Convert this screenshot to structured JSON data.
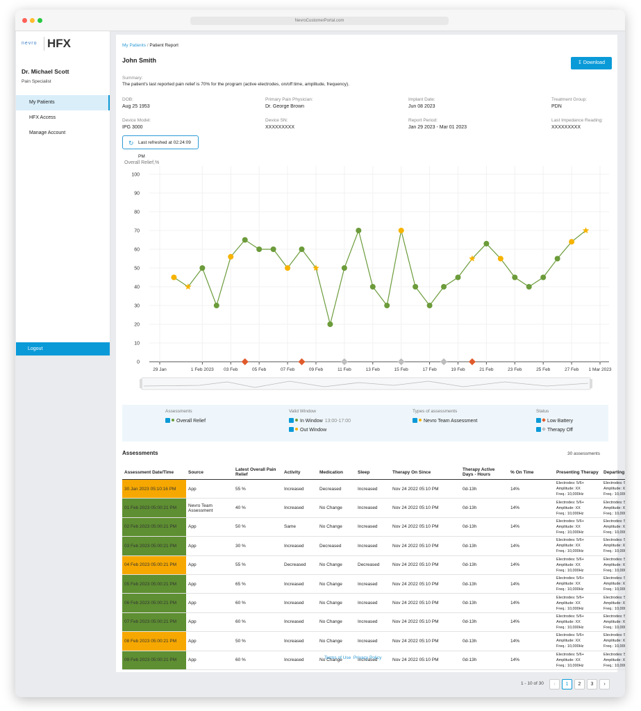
{
  "browser": {
    "url": "NevroCustomerPortal.com"
  },
  "sidebar": {
    "logo": {
      "brand": "nevro",
      "product": "HFX"
    },
    "user": {
      "name": "Dr. Michael Scott",
      "role": "Pain Specialist"
    },
    "nav": [
      "My Patients",
      "HFX Access",
      "Manage Account"
    ],
    "logout": "Logout"
  },
  "breadcrumb": [
    "My Patients",
    "Patient Report"
  ],
  "patient": {
    "name": "John Smith",
    "download": "Download",
    "summary_label": "Summary:",
    "summary": "The patient's last reported pain relief is 70% for the program (active electrodes, on/off time, amplitude, frequency).",
    "fields": [
      {
        "label": "DOB:",
        "value": "Aug 25 1953"
      },
      {
        "label": "Primary Pain Physician:",
        "value": "Dr. George Brown"
      },
      {
        "label": "Implant Date:",
        "value": "Jun 08 2023"
      },
      {
        "label": "Treatment Group:",
        "value": "PDN"
      },
      {
        "label": "Device Model:",
        "value": "IPG 3000"
      },
      {
        "label": "Device SN:",
        "value": "XXXXXXXXX"
      },
      {
        "label": "Report Period:",
        "value": "Jan 29 2023 - Mar 01 2023"
      },
      {
        "label": "Last Impedance Reading:",
        "value": "XXXXXXXXX"
      }
    ],
    "refreshed": "Last refreshed at 02:24:09 PM"
  },
  "chart_data": {
    "type": "line",
    "y_label": "Overall Relief,%",
    "x": [
      "2023-01-30",
      "2023-01-31",
      "2023-02-01",
      "2023-02-02",
      "2023-02-03",
      "2023-02-04",
      "2023-02-05",
      "2023-02-06",
      "2023-02-07",
      "2023-02-08",
      "2023-02-09",
      "2023-02-10",
      "2023-02-11",
      "2023-02-12",
      "2023-02-13",
      "2023-02-14",
      "2023-02-15",
      "2023-02-16",
      "2023-02-17",
      "2023-02-18",
      "2023-02-19",
      "2023-02-20",
      "2023-02-21",
      "2023-02-22",
      "2023-02-23",
      "2023-02-24",
      "2023-02-25",
      "2023-02-26",
      "2023-02-27",
      "2023-02-28"
    ],
    "series": [
      {
        "name": "Overall Relief",
        "color": "#6b9b3a",
        "values": [
          45,
          40,
          50,
          30,
          56,
          65,
          60,
          60,
          50,
          60,
          50,
          20,
          50,
          70,
          40,
          30,
          70,
          40,
          30,
          40,
          45,
          55,
          63,
          55,
          45,
          40,
          45,
          55,
          64,
          70
        ],
        "point_types": [
          "Out Window",
          "Nevro Team Assessment",
          "In Window",
          "In Window",
          "Out Window",
          "In Window",
          "In Window",
          "In Window",
          "Out Window",
          "In Window",
          "Nevro Team Assessment",
          "In Window",
          "In Window",
          "In Window",
          "In Window",
          "In Window",
          "Out Window",
          "In Window",
          "In Window",
          "In Window",
          "In Window",
          "Nevro Team Assessment",
          "In Window",
          "Out Window",
          "In Window",
          "In Window",
          "In Window",
          "In Window",
          "Out Window",
          "Nevro Team Assessment"
        ]
      }
    ],
    "events": [
      {
        "name": "Low Battery",
        "color": "#e05a2b",
        "x": [
          "2023-02-04",
          "2023-02-08",
          "2023-02-20"
        ],
        "values": [
          0,
          0,
          0
        ]
      },
      {
        "name": "Therapy Off",
        "color": "#bdbdbd",
        "x": [
          "2023-02-11",
          "2023-02-15",
          "2023-02-18"
        ],
        "values": [
          0,
          0,
          0
        ]
      }
    ],
    "xlim": [
      "2023-01-29",
      "2023-03-01"
    ],
    "xticks": [
      {
        "value": "2023-01-29",
        "label": "29 Jan"
      },
      {
        "value": "2023-02-01",
        "label": "1 Feb 2023"
      },
      {
        "value": "2023-02-03",
        "label": "03 Feb"
      },
      {
        "value": "2023-02-05",
        "label": "05 Feb"
      },
      {
        "value": "2023-02-07",
        "label": "07 Feb"
      },
      {
        "value": "2023-02-09",
        "label": "09 Feb"
      },
      {
        "value": "2023-02-11",
        "label": "11 Feb"
      },
      {
        "value": "2023-02-13",
        "label": "13 Feb"
      },
      {
        "value": "2023-02-15",
        "label": "15 Feb"
      },
      {
        "value": "2023-02-17",
        "label": "17 Feb"
      },
      {
        "value": "2023-02-19",
        "label": "19 Feb"
      },
      {
        "value": "2023-02-21",
        "label": "21 Feb"
      },
      {
        "value": "2023-02-23",
        "label": "23 Feb"
      },
      {
        "value": "2023-02-25",
        "label": "25 Feb"
      },
      {
        "value": "2023-02-27",
        "label": "27 Feb"
      },
      {
        "value": "2023-03-01",
        "label": "1 Mar 2023"
      }
    ],
    "ylim": [
      0,
      100
    ],
    "yticks": [
      0,
      10,
      20,
      30,
      40,
      50,
      60,
      70,
      80,
      90,
      100
    ],
    "grid": true,
    "marker_colors": {
      "In Window": "#6b9b3a",
      "Out Window": "#f6b300",
      "Nevro Team Assessment": "#f6b300"
    },
    "legend": [
      {
        "title": "Assessments",
        "items": [
          {
            "label": "Overall Relief",
            "color": "#6b9b3a"
          }
        ]
      },
      {
        "title": "Valid Window",
        "items": [
          {
            "label": "In Window",
            "note": "13:00-17:00",
            "color": "#6b9b3a"
          },
          {
            "label": "Out Window",
            "color": "#f6b300"
          }
        ]
      },
      {
        "title": "Types of assessments",
        "items": [
          {
            "label": "Nevro Team Assessment",
            "color": "#f6b300"
          }
        ]
      },
      {
        "title": "Status",
        "items": [
          {
            "label": "Low Battery",
            "color": "#e05a2b"
          },
          {
            "label": "Therapy Off",
            "color": "#bdbdbd"
          }
        ]
      }
    ]
  },
  "assessments": {
    "title": "Assessments",
    "count": "30 assessments",
    "columns": [
      "Assessment Date/Time",
      "Source",
      "Latest Overall Pain Relief",
      "Activity",
      "Medication",
      "Sleep",
      "Therapy On Since",
      "Therapy Active Days - Hours",
      "% On Time",
      "Presenting Therapy",
      "Departing Therapy"
    ],
    "therapy": [
      "Electrodes: 5/6+",
      "Amplitude: XX",
      "Freq.: 10,000Hz"
    ],
    "date_colors": [
      "#f6a800",
      "#5e8f32",
      "#5e8f32",
      "#5e8f32",
      "#f6a800",
      "#5e8f32",
      "#5e8f32",
      "#5e8f32",
      "#f6a800",
      "#5e8f32"
    ],
    "rows": [
      [
        "30 Jan 2023 05:10:16 PM",
        "App",
        "55 %",
        "Increased",
        "Decreased",
        "Increased",
        "Nov 24 2022 05:10 PM",
        "0d-13h",
        "14%"
      ],
      [
        "01 Feb 2023 05:00:21 PM",
        "Nevro Team Assessment",
        "40 %",
        "Increased",
        "No Change",
        "Increased",
        "Nov 24 2022 05:10 PM",
        "0d-13h",
        "14%"
      ],
      [
        "02 Feb 2023 05:00:21 PM",
        "App",
        "50 %",
        "Same",
        "No Change",
        "Increased",
        "Nov 24 2022 05:10 PM",
        "0d-13h",
        "14%"
      ],
      [
        "03 Feb 2023 05:00:21 PM",
        "App",
        "30 %",
        "Increased",
        "Decreased",
        "Increased",
        "Nov 24 2022 05:10 PM",
        "0d-13h",
        "14%"
      ],
      [
        "04 Feb 2023 05:00:21 PM",
        "App",
        "55 %",
        "Decreased",
        "No Change",
        "Decreased",
        "Nov 24 2022 05:10 PM",
        "0d-13h",
        "14%"
      ],
      [
        "05 Feb 2023 05:00:21 PM",
        "App",
        "65 %",
        "Increased",
        "No Change",
        "Increased",
        "Nov 24 2022 05:10 PM",
        "0d-13h",
        "14%"
      ],
      [
        "06 Feb 2023 05:00:21 PM",
        "App",
        "60 %",
        "Increased",
        "No Change",
        "Increased",
        "Nov 24 2022 05:10 PM",
        "0d-13h",
        "14%"
      ],
      [
        "07 Feb 2023 05:00:21 PM",
        "App",
        "60 %",
        "Increased",
        "No Change",
        "Increased",
        "Nov 24 2022 05:10 PM",
        "0d-13h",
        "14%"
      ],
      [
        "08 Feb 2023 05:00:21 PM",
        "App",
        "50 %",
        "Increased",
        "No Change",
        "Increased",
        "Nov 24 2022 05:10 PM",
        "0d-13h",
        "14%"
      ],
      [
        "09 Feb 2023 05:00:21 PM",
        "App",
        "60 %",
        "Increased",
        "No Change",
        "Increased",
        "Nov 24 2022 05:10 PM",
        "0d-13h",
        "14%"
      ]
    ]
  },
  "footer": {
    "links": [
      "Terms of Use",
      "Privacy Policy"
    ]
  },
  "pagination": {
    "range": "1 - 10 of 30",
    "pages": [
      1,
      2,
      3
    ]
  }
}
